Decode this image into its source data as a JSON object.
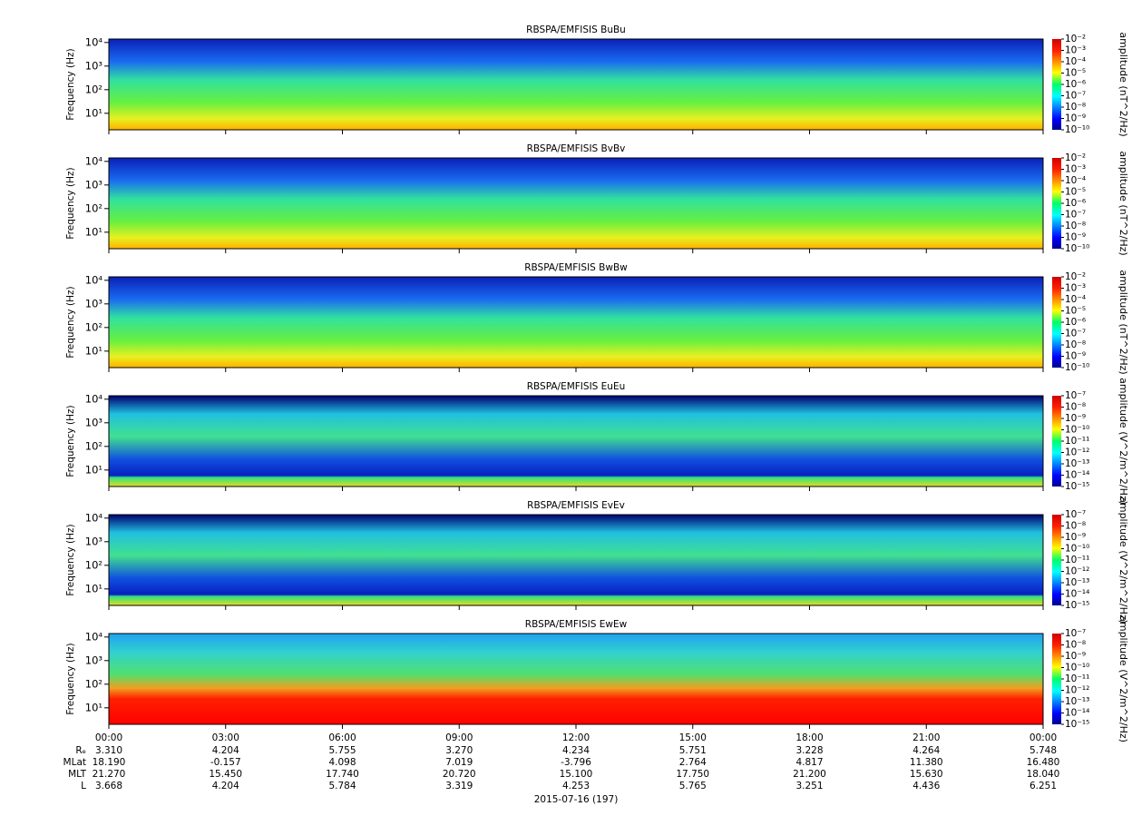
{
  "chart_data": [
    {
      "type": "spectrogram",
      "title": "RBSPA/EMFISIS  BuBu",
      "ylabel": "Frequency (Hz)",
      "ylim": [
        2,
        14000
      ],
      "yscale": "log",
      "yticks": [
        {
          "value": 10,
          "label": "10¹"
        },
        {
          "value": 100,
          "label": "10²"
        },
        {
          "value": 1000,
          "label": "10³"
        },
        {
          "value": 10000,
          "label": "10⁴"
        }
      ],
      "colorbar": {
        "label": "amplitude (nT^2/Hz)",
        "lim": [
          1e-10,
          0.01
        ],
        "scale": "log",
        "ticks": [
          {
            "value": 1e-10,
            "label": "10⁻¹⁰"
          },
          {
            "value": 1e-09,
            "label": "10⁻⁹"
          },
          {
            "value": 1e-08,
            "label": "10⁻⁸"
          },
          {
            "value": 1e-07,
            "label": "10⁻⁷"
          },
          {
            "value": 1e-06,
            "label": "10⁻⁶"
          },
          {
            "value": 1e-05,
            "label": "10⁻⁵"
          },
          {
            "value": 0.0001,
            "label": "10⁻⁴"
          },
          {
            "value": 0.001,
            "label": "10⁻³"
          },
          {
            "value": 0.01,
            "label": "10⁻²"
          }
        ]
      }
    },
    {
      "type": "spectrogram",
      "title": "RBSPA/EMFISIS  BvBv",
      "ylabel": "Frequency (Hz)",
      "ylim": [
        2,
        14000
      ],
      "yscale": "log",
      "yticks": [
        {
          "value": 10,
          "label": "10¹"
        },
        {
          "value": 100,
          "label": "10²"
        },
        {
          "value": 1000,
          "label": "10³"
        },
        {
          "value": 10000,
          "label": "10⁴"
        }
      ],
      "colorbar": {
        "label": "amplitude (nT^2/Hz)",
        "lim": [
          1e-10,
          0.01
        ],
        "scale": "log",
        "ticks": [
          {
            "value": 1e-10,
            "label": "10⁻¹⁰"
          },
          {
            "value": 1e-09,
            "label": "10⁻⁹"
          },
          {
            "value": 1e-08,
            "label": "10⁻⁸"
          },
          {
            "value": 1e-07,
            "label": "10⁻⁷"
          },
          {
            "value": 1e-06,
            "label": "10⁻⁶"
          },
          {
            "value": 1e-05,
            "label": "10⁻⁵"
          },
          {
            "value": 0.0001,
            "label": "10⁻⁴"
          },
          {
            "value": 0.001,
            "label": "10⁻³"
          },
          {
            "value": 0.01,
            "label": "10⁻²"
          }
        ]
      }
    },
    {
      "type": "spectrogram",
      "title": "RBSPA/EMFISIS  BwBw",
      "ylabel": "Frequency (Hz)",
      "ylim": [
        2,
        14000
      ],
      "yscale": "log",
      "yticks": [
        {
          "value": 10,
          "label": "10¹"
        },
        {
          "value": 100,
          "label": "10²"
        },
        {
          "value": 1000,
          "label": "10³"
        },
        {
          "value": 10000,
          "label": "10⁴"
        }
      ],
      "colorbar": {
        "label": "amplitude (nT^2/Hz)",
        "lim": [
          1e-10,
          0.01
        ],
        "scale": "log",
        "ticks": [
          {
            "value": 1e-10,
            "label": "10⁻¹⁰"
          },
          {
            "value": 1e-09,
            "label": "10⁻⁹"
          },
          {
            "value": 1e-08,
            "label": "10⁻⁸"
          },
          {
            "value": 1e-07,
            "label": "10⁻⁷"
          },
          {
            "value": 1e-06,
            "label": "10⁻⁶"
          },
          {
            "value": 1e-05,
            "label": "10⁻⁵"
          },
          {
            "value": 0.0001,
            "label": "10⁻⁴"
          },
          {
            "value": 0.001,
            "label": "10⁻³"
          },
          {
            "value": 0.01,
            "label": "10⁻²"
          }
        ]
      }
    },
    {
      "type": "spectrogram",
      "title": "RBSPA/EMFISIS  EuEu",
      "ylabel": "Frequency (Hz)",
      "ylim": [
        2,
        14000
      ],
      "yscale": "log",
      "yticks": [
        {
          "value": 10,
          "label": "10¹"
        },
        {
          "value": 100,
          "label": "10²"
        },
        {
          "value": 1000,
          "label": "10³"
        },
        {
          "value": 10000,
          "label": "10⁴"
        }
      ],
      "colorbar": {
        "label": "amplitude (V^2/m^2/Hz)",
        "lim": [
          1e-15,
          1e-07
        ],
        "scale": "log",
        "ticks": [
          {
            "value": 1e-15,
            "label": "10⁻¹⁵"
          },
          {
            "value": 1e-14,
            "label": "10⁻¹⁴"
          },
          {
            "value": 1e-13,
            "label": "10⁻¹³"
          },
          {
            "value": 1e-12,
            "label": "10⁻¹²"
          },
          {
            "value": 1e-11,
            "label": "10⁻¹¹"
          },
          {
            "value": 1e-10,
            "label": "10⁻¹⁰"
          },
          {
            "value": 1e-09,
            "label": "10⁻⁹"
          },
          {
            "value": 1e-08,
            "label": "10⁻⁸"
          },
          {
            "value": 1e-07,
            "label": "10⁻⁷"
          }
        ]
      }
    },
    {
      "type": "spectrogram",
      "title": "RBSPA/EMFISIS  EvEv",
      "ylabel": "Frequency (Hz)",
      "ylim": [
        2,
        14000
      ],
      "yscale": "log",
      "yticks": [
        {
          "value": 10,
          "label": "10¹"
        },
        {
          "value": 100,
          "label": "10²"
        },
        {
          "value": 1000,
          "label": "10³"
        },
        {
          "value": 10000,
          "label": "10⁴"
        }
      ],
      "colorbar": {
        "label": "amplitude (V^2/m^2/Hz)",
        "lim": [
          1e-15,
          1e-07
        ],
        "scale": "log",
        "ticks": [
          {
            "value": 1e-15,
            "label": "10⁻¹⁵"
          },
          {
            "value": 1e-14,
            "label": "10⁻¹⁴"
          },
          {
            "value": 1e-13,
            "label": "10⁻¹³"
          },
          {
            "value": 1e-12,
            "label": "10⁻¹²"
          },
          {
            "value": 1e-11,
            "label": "10⁻¹¹"
          },
          {
            "value": 1e-10,
            "label": "10⁻¹⁰"
          },
          {
            "value": 1e-09,
            "label": "10⁻⁹"
          },
          {
            "value": 1e-08,
            "label": "10⁻⁸"
          },
          {
            "value": 1e-07,
            "label": "10⁻⁷"
          }
        ]
      }
    },
    {
      "type": "spectrogram",
      "title": "RBSPA/EMFISIS  EwEw",
      "ylabel": "Frequency (Hz)",
      "ylim": [
        2,
        14000
      ],
      "yscale": "log",
      "yticks": [
        {
          "value": 10,
          "label": "10¹"
        },
        {
          "value": 100,
          "label": "10²"
        },
        {
          "value": 1000,
          "label": "10³"
        },
        {
          "value": 10000,
          "label": "10⁴"
        }
      ],
      "colorbar": {
        "label": "amplitude (V^2/m^2/Hz)",
        "lim": [
          1e-15,
          1e-07
        ],
        "scale": "log",
        "ticks": [
          {
            "value": 1e-15,
            "label": "10⁻¹⁵"
          },
          {
            "value": 1e-14,
            "label": "10⁻¹⁴"
          },
          {
            "value": 1e-13,
            "label": "10⁻¹³"
          },
          {
            "value": 1e-12,
            "label": "10⁻¹²"
          },
          {
            "value": 1e-11,
            "label": "10⁻¹¹"
          },
          {
            "value": 1e-10,
            "label": "10⁻¹⁰"
          },
          {
            "value": 1e-09,
            "label": "10⁻⁹"
          },
          {
            "value": 1e-08,
            "label": "10⁻⁸"
          },
          {
            "value": 1e-07,
            "label": "10⁻⁷"
          }
        ]
      }
    }
  ],
  "time_axis": {
    "ticks": [
      "00:00",
      "03:00",
      "06:00",
      "09:00",
      "12:00",
      "15:00",
      "18:00",
      "21:00",
      "00:00"
    ],
    "rows": [
      {
        "label": "Rₑ",
        "values": [
          "3.310",
          "4.204",
          "5.755",
          "3.270",
          "4.234",
          "5.751",
          "3.228",
          "4.264",
          "5.748"
        ]
      },
      {
        "label": "MLat",
        "values": [
          "18.190",
          "-0.157",
          "4.098",
          "7.019",
          "-3.796",
          "2.764",
          "4.817",
          "11.380",
          "16.480"
        ]
      },
      {
        "label": "MLT",
        "values": [
          "21.270",
          "15.450",
          "17.740",
          "20.720",
          "15.100",
          "17.750",
          "21.200",
          "15.630",
          "18.040"
        ]
      },
      {
        "label": "L",
        "values": [
          "3.668",
          "4.204",
          "5.784",
          "3.319",
          "4.253",
          "5.765",
          "3.251",
          "4.436",
          "6.251"
        ]
      }
    ],
    "date": "2015-07-16 (197)"
  }
}
